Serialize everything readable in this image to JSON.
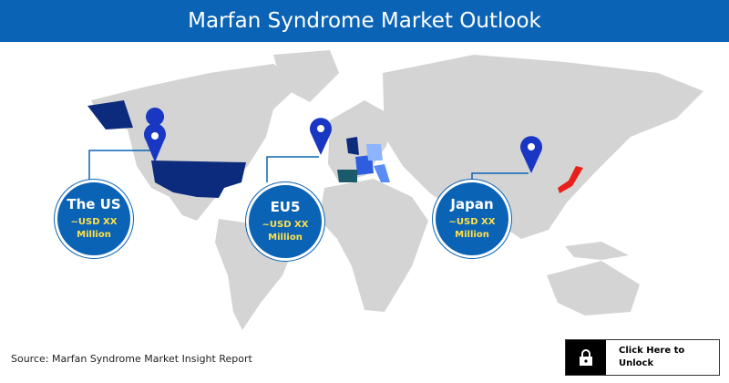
{
  "header": {
    "title": "Marfan Syndrome Market Outlook"
  },
  "regions": [
    {
      "name": "The US",
      "value": "~USD XX Million"
    },
    {
      "name": "EU5",
      "value": "~USD XX Million"
    },
    {
      "name": "Japan",
      "value": "~USD XX Million"
    }
  ],
  "footer": {
    "source": "Source: Marfan Syndrome Market Insight Report",
    "button": "Click Here to Unlock"
  }
}
